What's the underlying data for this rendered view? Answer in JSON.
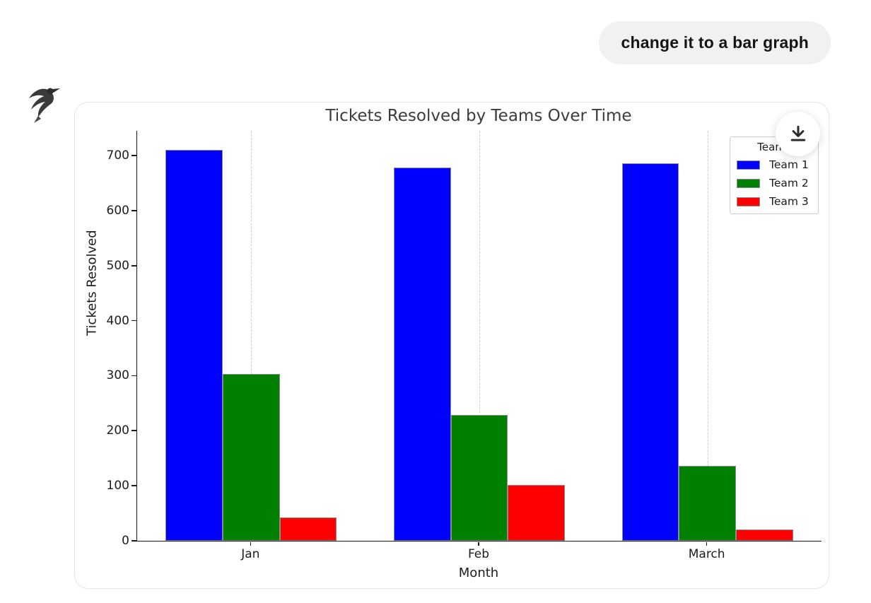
{
  "chat": {
    "user_message": "change it to a bar graph"
  },
  "assistant": {
    "avatar_icon": "bird-logo-icon"
  },
  "card": {
    "download_icon": "download-icon"
  },
  "chart_data": {
    "type": "bar",
    "title": "Tickets Resolved by Teams Over Time",
    "xlabel": "Month",
    "ylabel": "Tickets Resolved",
    "categories": [
      "Jan",
      "Feb",
      "March"
    ],
    "series": [
      {
        "name": "Team 1",
        "color": "#0000ff",
        "values": [
          710,
          678,
          686
        ]
      },
      {
        "name": "Team 2",
        "color": "#008000",
        "values": [
          303,
          229,
          136
        ]
      },
      {
        "name": "Team 3",
        "color": "#ff0000",
        "values": [
          42,
          102,
          20
        ]
      }
    ],
    "legend_title": "Teams",
    "legend_position": "upper right",
    "ylim": [
      0,
      745
    ],
    "yticks": [
      0,
      100,
      200,
      300,
      400,
      500,
      600,
      700
    ],
    "grid": "vertical-dashed",
    "bar_edge_color": "#8c8c8c",
    "bar_group_width": 0.75
  }
}
